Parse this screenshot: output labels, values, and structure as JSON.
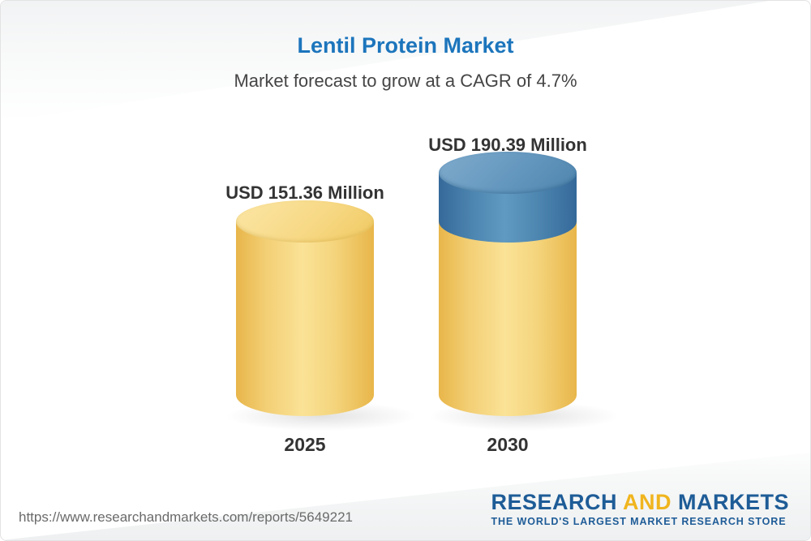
{
  "page": {
    "title": "Lentil Protein Market",
    "subtitle": "Market forecast to grow at a CAGR of 4.7%"
  },
  "chart_data": {
    "type": "bar",
    "variant": "3d-cylinder",
    "categories": [
      "2025",
      "2030"
    ],
    "values": [
      151.36,
      190.39
    ],
    "value_labels": [
      "USD 151.36 Million",
      "USD 190.39 Million"
    ],
    "unit": "USD Million",
    "title": "Lentil Protein Market",
    "subtitle": "Market forecast to grow at a CAGR of 4.7%",
    "cagr_percent": 4.7,
    "legend": "none",
    "grid": false,
    "notes": "2030 cylinder shows growth segment in blue on top of yellow base",
    "colors": {
      "base_segment": "#F5D67F",
      "growth_segment": "#4D86B0",
      "title_accent": "#1C75BC",
      "label_text": "#333333"
    }
  },
  "footer": {
    "url": "https://www.researchandmarkets.com/reports/5649221",
    "logo": {
      "word1": "RESEARCH ",
      "word2": "AND",
      "word3": " MARKETS",
      "tagline": "THE WORLD'S LARGEST MARKET RESEARCH STORE"
    }
  }
}
